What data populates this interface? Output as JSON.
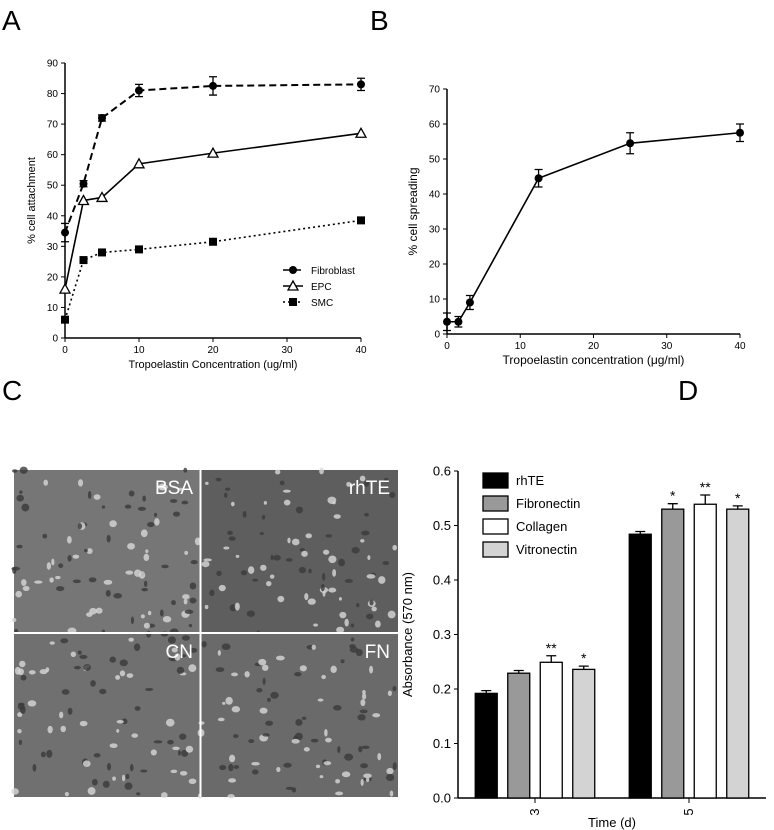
{
  "figure": {
    "panel_labels": [
      "A",
      "B",
      "C",
      "D"
    ],
    "micrograph_labels": [
      "BSA",
      "rhTE",
      "CN",
      "FN"
    ]
  },
  "chart_data": [
    {
      "type": "line",
      "xlabel": "Tropoelastin Concentration (ug/ml)",
      "ylabel": "% cell attachment",
      "x": [
        0,
        2.5,
        5,
        10,
        20,
        40
      ],
      "xlim": [
        0,
        40
      ],
      "xticks": [
        0,
        10,
        20,
        30,
        40
      ],
      "ylim": [
        0,
        90
      ],
      "yticks": [
        0,
        10,
        20,
        30,
        40,
        50,
        60,
        70,
        80,
        90
      ],
      "legend": "lower right",
      "series": [
        {
          "name": "Fibroblast",
          "color": "#000000",
          "dash": "dashed",
          "marker": "circle",
          "values": [
            34.5,
            50.5,
            72,
            81,
            82.5,
            83
          ],
          "errors": [
            3,
            1,
            1,
            2,
            3,
            2
          ]
        },
        {
          "name": "EPC",
          "color": "#000000",
          "dash": "solid",
          "marker": "triangle",
          "values": [
            16,
            45,
            46,
            57,
            60.5,
            67
          ]
        },
        {
          "name": "SMC",
          "color": "#000000",
          "dash": "dotted",
          "marker": "square",
          "values": [
            6,
            25.5,
            28,
            29,
            31.5,
            38.5
          ]
        }
      ]
    },
    {
      "type": "line",
      "xlabel": "Tropoelastin concentration (μg/ml)",
      "ylabel": "% cell spreading",
      "x": [
        0,
        1.56,
        3.13,
        12.5,
        25,
        40
      ],
      "xlim": [
        0,
        40
      ],
      "xticks": [
        0,
        10,
        20,
        30,
        40
      ],
      "ylim": [
        0,
        70
      ],
      "yticks": [
        0,
        10,
        20,
        30,
        40,
        50,
        60,
        70
      ],
      "series": [
        {
          "color": "#000000",
          "dash": "solid",
          "marker": "circle",
          "values": [
            3.5,
            3.5,
            9,
            44.5,
            54.5,
            57.5
          ],
          "errors": [
            2.5,
            1.5,
            2,
            2.5,
            3,
            2.5
          ]
        }
      ]
    },
    {
      "type": "bar",
      "xlabel": "Time (d)",
      "ylabel": "Absorbance (570 nm)",
      "categories": [
        "3",
        "5"
      ],
      "ylim": [
        0,
        0.6
      ],
      "yticks": [
        {
          "value": 0,
          "label": "0.0"
        },
        0.1,
        0.2,
        0.3,
        0.4,
        0.5,
        0.6
      ],
      "legend": "upper left",
      "series": [
        {
          "name": "rhTE",
          "color": "#000000",
          "values": [
            0.192,
            0.484
          ],
          "errors": [
            0.005,
            0.005
          ],
          "stars": [
            null,
            null
          ]
        },
        {
          "name": "Fibronectin",
          "color": "#999999",
          "values": [
            0.229,
            0.53
          ],
          "errors": [
            0.005,
            0.01
          ],
          "stars": [
            null,
            "*"
          ]
        },
        {
          "name": "Collagen",
          "color": "#ffffff",
          "values": [
            0.249,
            0.539
          ],
          "errors": [
            0.012,
            0.017
          ],
          "stars": [
            "**",
            "**"
          ]
        },
        {
          "name": "Vitronectin",
          "color": "#d3d3d3",
          "values": [
            0.236,
            0.53
          ],
          "errors": [
            0.006,
            0.006
          ],
          "stars": [
            "*",
            "*"
          ]
        }
      ]
    }
  ]
}
